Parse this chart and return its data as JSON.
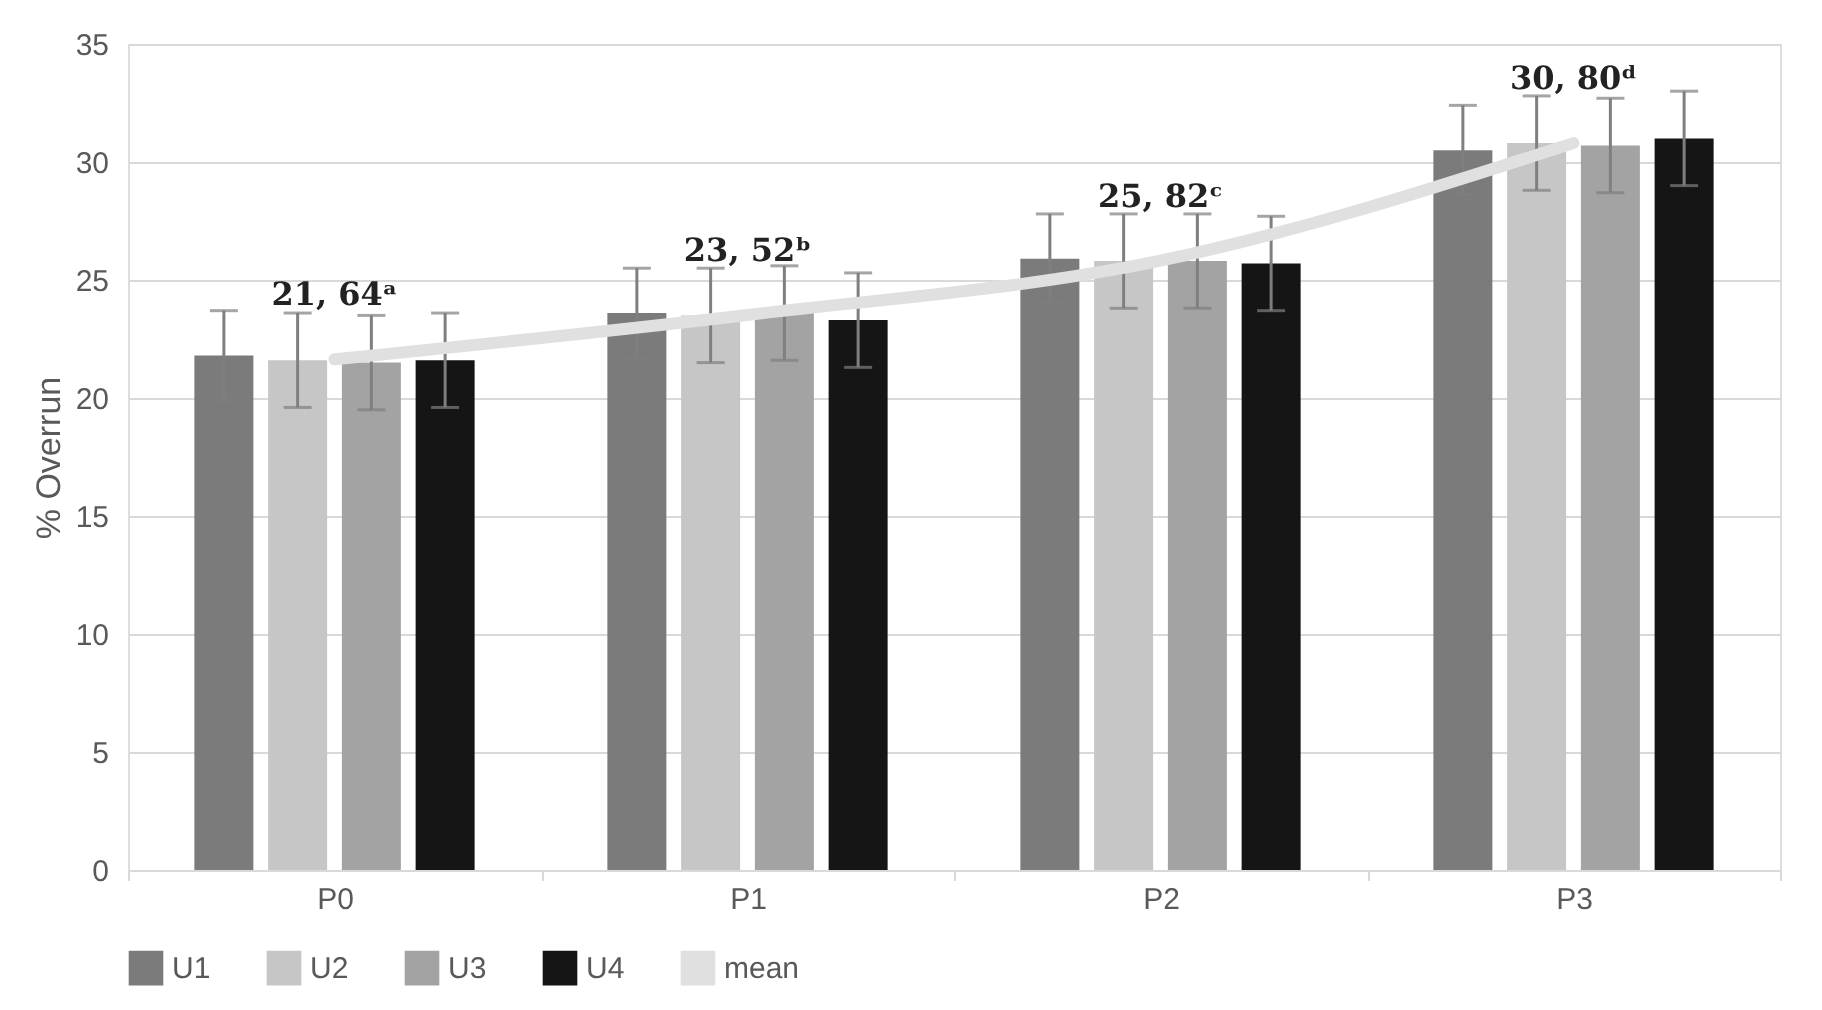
{
  "chart_data": {
    "type": "bar",
    "ylabel": "% Overrun",
    "categories": [
      "P0",
      "P1",
      "P2",
      "P3"
    ],
    "series": [
      {
        "name": "U1",
        "color": "#7b7b7b",
        "values": [
          21.8,
          23.6,
          25.9,
          30.5
        ],
        "errors": [
          1.9,
          1.9,
          1.9,
          1.9
        ]
      },
      {
        "name": "U2",
        "color": "#c5c6c5",
        "values": [
          21.6,
          23.5,
          25.8,
          30.8
        ],
        "errors": [
          2.0,
          2.0,
          2.0,
          2.0
        ]
      },
      {
        "name": "U3",
        "color": "#a3a3a3",
        "values": [
          21.5,
          23.6,
          25.8,
          30.7
        ],
        "errors": [
          2.0,
          2.0,
          2.0,
          2.0
        ]
      },
      {
        "name": "U4",
        "color": "#151515",
        "values": [
          21.6,
          23.3,
          25.7,
          31.0
        ],
        "errors": [
          2.0,
          2.0,
          2.0,
          2.0
        ]
      },
      {
        "name": "mean",
        "type": "line",
        "color": "#e0e0e0",
        "values": [
          21.64,
          23.52,
          25.82,
          30.8
        ]
      }
    ],
    "annotations": [
      {
        "text": "21, 64ᵃ",
        "x": "P0",
        "y": 21.64
      },
      {
        "text": "23, 52ᵇ",
        "x": "P1",
        "y": 23.52
      },
      {
        "text": "25, 82ᶜ",
        "x": "P2",
        "y": 25.82
      },
      {
        "text": "30, 80ᵈ",
        "x": "P3",
        "y": 30.8
      }
    ],
    "ylim": [
      0,
      35
    ],
    "yticks": [
      0,
      5,
      10,
      15,
      20,
      25,
      30,
      35
    ],
    "grid": "y",
    "legend": "bottom"
  }
}
